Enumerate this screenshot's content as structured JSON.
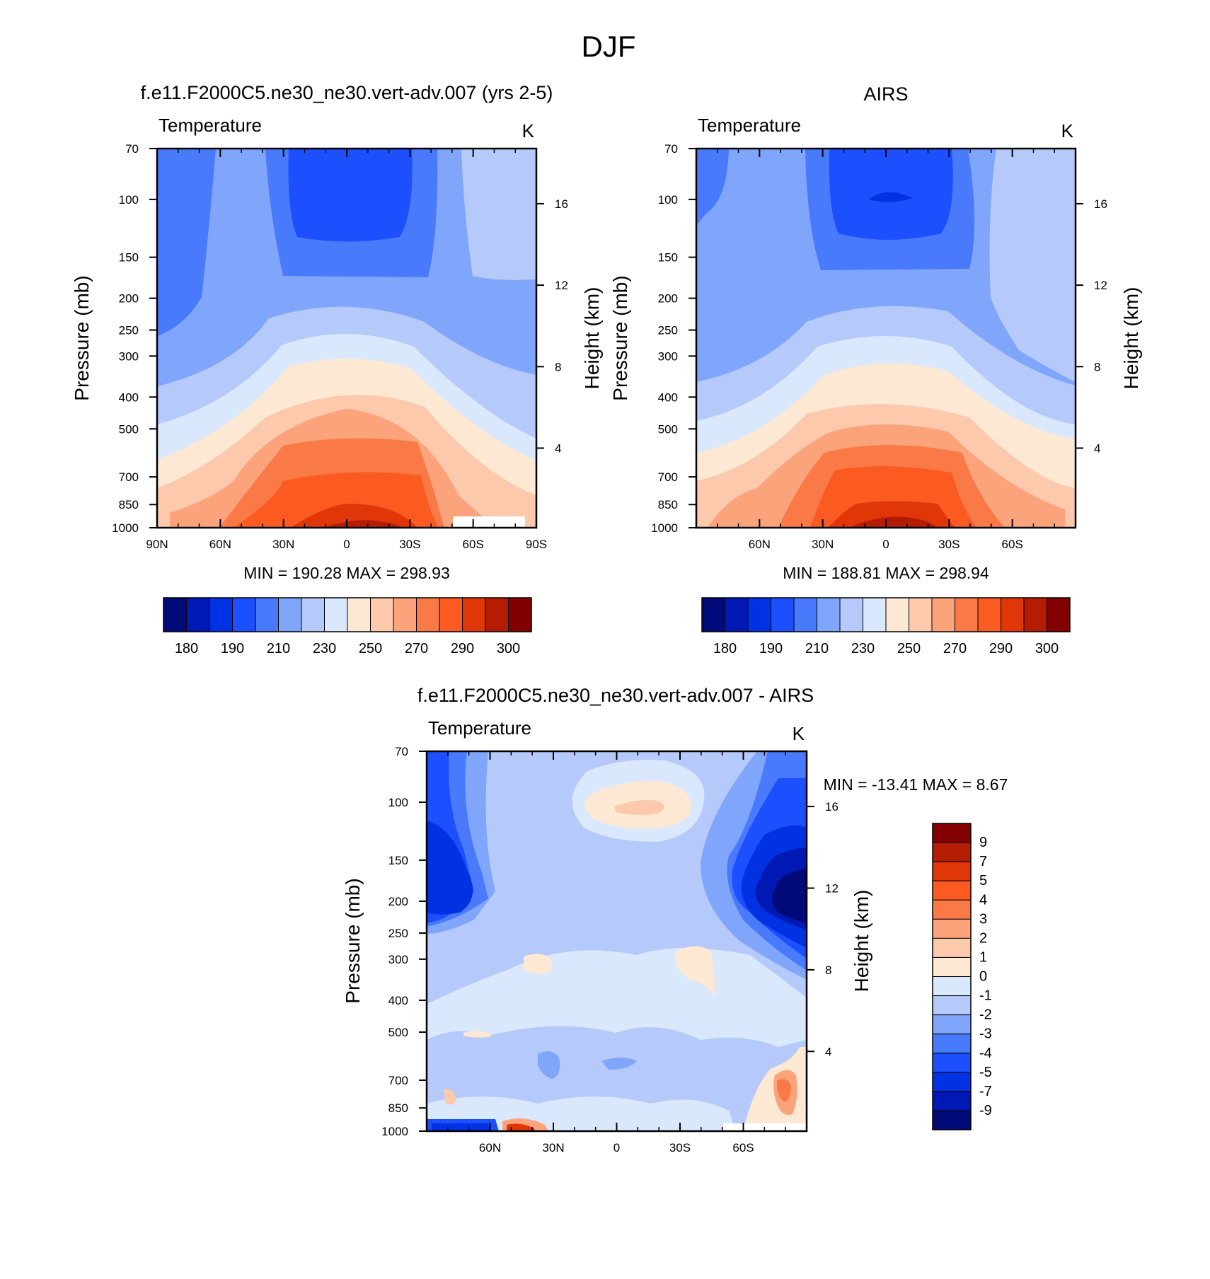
{
  "page_title": "DJF",
  "chart_data": [
    {
      "type": "contour",
      "id": "model",
      "title": "f.e11.F2000C5.ne30_ne30.vert-adv.007 (yrs 2-5)",
      "left_label": "Temperature",
      "right_label": "K",
      "ylabel": "Pressure (mb)",
      "y2label": "Height (km)",
      "yticks": [
        "70",
        "100",
        "150",
        "200",
        "250",
        "300",
        "400",
        "500",
        "700",
        "850",
        "1000"
      ],
      "y2ticks": [
        "16",
        "12",
        "8",
        "4"
      ],
      "xticks": [
        "90N",
        "60N",
        "30N",
        "0",
        "30S",
        "60S",
        "90S"
      ],
      "stats": "MIN = 190.28  MAX = 298.93",
      "min": 190.28,
      "max": 298.93,
      "colorbar": {
        "orientation": "horizontal",
        "labels": [
          "180",
          "190",
          "210",
          "230",
          "250",
          "270",
          "290",
          "300"
        ],
        "colors": [
          "#000a79",
          "#0018b4",
          "#0032e4",
          "#1c50ff",
          "#4a7afc",
          "#80a6fb",
          "#b5c9fb",
          "#d9e8fc",
          "#fde8d4",
          "#fcc9ad",
          "#fba37b",
          "#f97947",
          "#fb5a21",
          "#e13607",
          "#b51c04",
          "#830000"
        ]
      }
    },
    {
      "type": "contour",
      "id": "obs",
      "title": "AIRS",
      "left_label": "Temperature",
      "right_label": "K",
      "ylabel": "Pressure (mb)",
      "y2label": "Height (km)",
      "yticks": [
        "70",
        "100",
        "150",
        "200",
        "250",
        "300",
        "400",
        "500",
        "700",
        "850",
        "1000"
      ],
      "y2ticks": [
        "16",
        "12",
        "8",
        "4"
      ],
      "xticks": [
        "60N",
        "30N",
        "0",
        "30S",
        "60S"
      ],
      "stats": "MIN = 188.81  MAX = 298.94",
      "min": 188.81,
      "max": 298.94,
      "colorbar": {
        "orientation": "horizontal",
        "labels": [
          "180",
          "190",
          "210",
          "230",
          "250",
          "270",
          "290",
          "300"
        ],
        "colors": [
          "#000a79",
          "#0018b4",
          "#0032e4",
          "#1c50ff",
          "#4a7afc",
          "#80a6fb",
          "#b5c9fb",
          "#d9e8fc",
          "#fde8d4",
          "#fcc9ad",
          "#fba37b",
          "#f97947",
          "#fb5a21",
          "#e13607",
          "#b51c04",
          "#830000"
        ]
      }
    },
    {
      "type": "contour",
      "id": "diff",
      "title": "f.e11.F2000C5.ne30_ne30.vert-adv.007 - AIRS",
      "left_label": "Temperature",
      "right_label": "K",
      "ylabel": "Pressure (mb)",
      "y2label": "Height (km)",
      "yticks": [
        "70",
        "100",
        "150",
        "200",
        "250",
        "300",
        "400",
        "500",
        "700",
        "850",
        "1000"
      ],
      "y2ticks": [
        "16",
        "12",
        "8",
        "4"
      ],
      "xticks": [
        "60N",
        "30N",
        "0",
        "30S",
        "60S"
      ],
      "stats": "MIN = -13.41  MAX =   8.67",
      "min": -13.41,
      "max": 8.67,
      "colorbar": {
        "orientation": "vertical",
        "labels": [
          "9",
          "7",
          "5",
          "4",
          "3",
          "2",
          "1",
          "0",
          "-1",
          "-2",
          "-3",
          "-4",
          "-5",
          "-7",
          "-9"
        ],
        "colors": [
          "#830000",
          "#b51c04",
          "#e13607",
          "#fb5a21",
          "#f97947",
          "#fba37b",
          "#fcc9ad",
          "#fde8d4",
          "#d9e8fc",
          "#b5c9fb",
          "#80a6fb",
          "#4a7afc",
          "#1c50ff",
          "#0032e4",
          "#0018b4",
          "#000a79"
        ]
      }
    }
  ]
}
